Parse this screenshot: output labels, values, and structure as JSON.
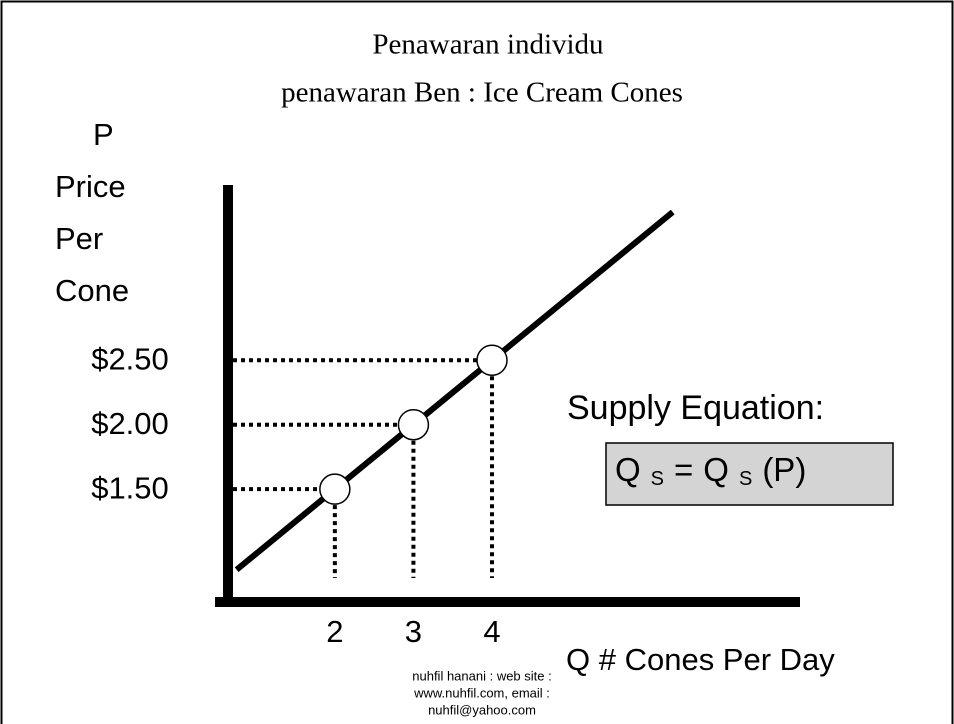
{
  "chart_data": {
    "type": "line",
    "title": "Penawaran individu",
    "subtitle": "penawaran Ben : Ice Cream Cones",
    "y_label": [
      "P",
      "Price",
      "Per",
      "Cone"
    ],
    "x_label": "Q  # Cones Per Day",
    "curve": {
      "x": [
        0.75,
        6.3
      ],
      "values": [
        0.875,
        3.65
      ]
    },
    "points": {
      "x": [
        2,
        3,
        4
      ],
      "values": [
        1.5,
        2,
        2.5
      ]
    },
    "xlim": [
      0.64,
      7.92
    ],
    "ylim": [
      0.64,
      3.86
    ],
    "xticks": [
      2,
      3,
      4
    ],
    "yticks": [
      {
        "value": 1.5,
        "label": "$1.50"
      },
      {
        "value": 2,
        "label": "$2.00"
      },
      {
        "value": 2.5,
        "label": "$2.50"
      }
    ],
    "annotation": "Supply Equation:",
    "equation": [
      "Q",
      "S",
      "=",
      "Q",
      "S",
      "(P)"
    ],
    "footer": [
      "nuhfil hanani : web site :",
      "www.nuhfil.com, email :",
      "nuhfil@yahoo.com"
    ]
  }
}
